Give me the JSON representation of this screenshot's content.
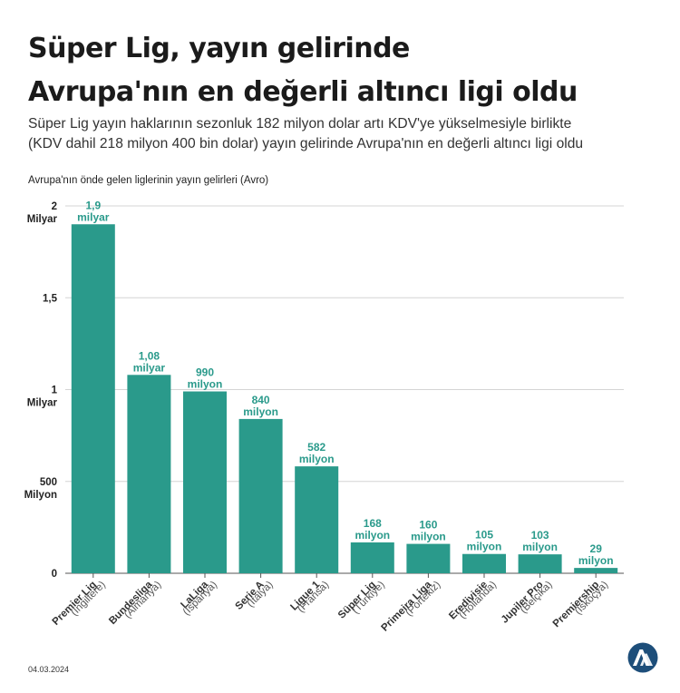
{
  "title_lines": [
    "Süper Lig, yayın gelirinde",
    "Avrupa'nın en değerli altıncı ligi oldu"
  ],
  "subtitle_lines": [
    "Süper Lig yayın haklarının sezonluk 182 milyon dolar artı KDV'ye yükselmesiyle birlikte",
    "(KDV dahil 218 milyon 400 bin dolar) yayın gelirinde Avrupa'nın en değerli altıncı ligi oldu"
  ],
  "date": "04.03.2024",
  "logo": "aa-logo-icon",
  "colors": {
    "bar": "#2a9a8b",
    "value_label": "#2a9a8b",
    "grid": "#d4d4d4"
  },
  "chart_data": {
    "type": "bar",
    "title": "Avrupa'nın önde gelen liglerinin yayın gelirleri (Avro)",
    "ylim": [
      0,
      2000000000
    ],
    "grid": true,
    "y_ticks": [
      {
        "value": 0,
        "lines": [
          "0"
        ]
      },
      {
        "value": 500000000,
        "lines": [
          "500",
          "Milyon"
        ]
      },
      {
        "value": 1000000000,
        "lines": [
          "1",
          "Milyar"
        ]
      },
      {
        "value": 1500000000,
        "lines": [
          "1,5"
        ]
      },
      {
        "value": 2000000000,
        "lines": [
          "2",
          "Milyar"
        ]
      }
    ],
    "categories": [
      {
        "name": "Premier Lig",
        "country": "(İngiltere)"
      },
      {
        "name": "Bundesliga",
        "country": "(Almanya)"
      },
      {
        "name": "LaLiga",
        "country": "(İspanya)"
      },
      {
        "name": "Serie A",
        "country": "(İtalya)"
      },
      {
        "name": "Ligue 1",
        "country": "(Fransa)"
      },
      {
        "name": "Süper Lig",
        "country": "(Türkiye)"
      },
      {
        "name": "Primeira Liga",
        "country": "(Portekiz)"
      },
      {
        "name": "Eredivisie",
        "country": "(Hollanda)"
      },
      {
        "name": "Jupiler Pro",
        "country": "(Belçika)"
      },
      {
        "name": "Premiership",
        "country": "(İskoçya)"
      }
    ],
    "values": [
      1900000000,
      1080000000,
      990000000,
      840000000,
      582000000,
      168000000,
      160000000,
      105000000,
      103000000,
      29000000
    ],
    "value_labels": [
      [
        "1,9",
        "milyar"
      ],
      [
        "1,08",
        "milyar"
      ],
      [
        "990",
        "milyon"
      ],
      [
        "840",
        "milyon"
      ],
      [
        "582",
        "milyon"
      ],
      [
        "168",
        "milyon"
      ],
      [
        "160",
        "milyon"
      ],
      [
        "105",
        "milyon"
      ],
      [
        "103",
        "milyon"
      ],
      [
        "29",
        "milyon"
      ]
    ]
  }
}
